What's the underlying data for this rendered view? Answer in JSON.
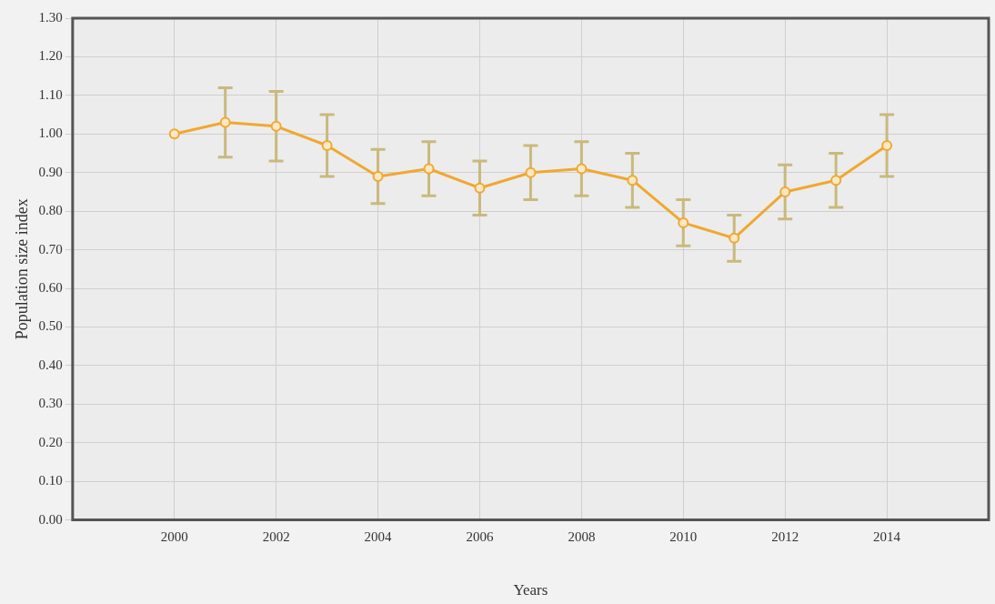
{
  "chart_data": {
    "type": "line",
    "xlabel": "Years",
    "ylabel": "Population size index",
    "x": [
      2000,
      2001,
      2002,
      2003,
      2004,
      2005,
      2006,
      2007,
      2008,
      2009,
      2010,
      2011,
      2012,
      2013,
      2014
    ],
    "series": [
      {
        "color": "#f0a830",
        "values": [
          1.0,
          1.03,
          1.02,
          0.97,
          0.89,
          0.91,
          0.86,
          0.9,
          0.91,
          0.88,
          0.77,
          0.73,
          0.85,
          0.88,
          0.97
        ],
        "errors": [
          null,
          [
            0.94,
            1.12
          ],
          [
            0.93,
            1.11
          ],
          [
            0.89,
            1.05
          ],
          [
            0.82,
            0.96
          ],
          [
            0.84,
            0.98
          ],
          [
            0.79,
            0.93
          ],
          [
            0.83,
            0.97
          ],
          [
            0.84,
            0.98
          ],
          [
            0.81,
            0.95
          ],
          [
            0.71,
            0.83
          ],
          [
            0.67,
            0.79
          ],
          [
            0.78,
            0.92
          ],
          [
            0.81,
            0.95
          ],
          [
            0.89,
            1.05
          ]
        ]
      }
    ],
    "xlim": [
      1998,
      2016
    ],
    "xticks": [
      2000,
      2002,
      2004,
      2006,
      2008,
      2010,
      2012,
      2014
    ],
    "ylim": [
      0,
      1.3
    ],
    "yticks": [
      {
        "value": 0,
        "label": "0.00"
      },
      {
        "value": 0.1,
        "label": "0.10"
      },
      {
        "value": 0.2,
        "label": "0.20"
      },
      {
        "value": 0.3,
        "label": "0.30"
      },
      {
        "value": 0.4,
        "label": "0.40"
      },
      {
        "value": 0.5,
        "label": "0.50"
      },
      {
        "value": 0.6,
        "label": "0.60"
      },
      {
        "value": 0.7,
        "label": "0.70"
      },
      {
        "value": 0.8,
        "label": "0.80"
      },
      {
        "value": 0.9,
        "label": "0.90"
      },
      {
        "value": 1.0,
        "label": "1.00"
      },
      {
        "value": 1.1,
        "label": "1.10"
      },
      {
        "value": 1.2,
        "label": "1.20"
      },
      {
        "value": 1.3,
        "label": "1.30"
      }
    ],
    "grid": true,
    "legend": false,
    "marker": "circle",
    "line_style": "solid"
  }
}
